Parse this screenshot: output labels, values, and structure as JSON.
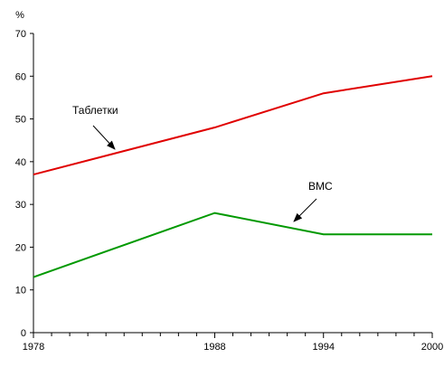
{
  "chart_data": {
    "type": "line",
    "y_unit": "%",
    "x": [
      1978,
      1988,
      1994,
      2000
    ],
    "xlim": [
      1978,
      2000
    ],
    "x_ticks": [
      1978,
      1988,
      1994,
      2000
    ],
    "ylim": [
      0,
      70
    ],
    "y_ticks": [
      0,
      10,
      20,
      30,
      40,
      50,
      60,
      70
    ],
    "grid": false,
    "legend": "none",
    "series": [
      {
        "name": "Таблетки",
        "color": "#e00000",
        "values": [
          37,
          48,
          56,
          60
        ]
      },
      {
        "name": "ВМС",
        "color": "#009900",
        "values": [
          13,
          28,
          23,
          23
        ]
      }
    ],
    "annotations": [
      {
        "text": "Таблетки",
        "target_series": 0
      },
      {
        "text": "ВМС",
        "target_series": 1
      }
    ]
  }
}
